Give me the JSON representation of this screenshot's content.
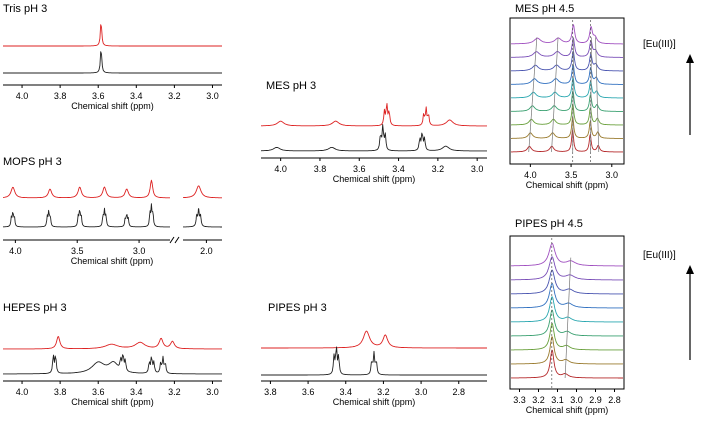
{
  "colors": {
    "ph3_red": "#dd2222",
    "ph3_black": "#222222",
    "titration": [
      "#b5282a",
      "#9a7b2e",
      "#6aa03c",
      "#3aa070",
      "#2aa7b0",
      "#3070c0",
      "#4a55b0",
      "#7a4fb8",
      "#a050c0"
    ]
  },
  "arrow_label": "[Eu(III)]",
  "chart_data": [
    {
      "id": "tris",
      "type": "line",
      "title": "Tris pH 3",
      "xlabel": "Chemical shift (ppm)",
      "xlim": [
        4.1,
        2.95
      ],
      "ticks": [
        4.0,
        3.8,
        3.6,
        3.4,
        3.2,
        3.0
      ],
      "tick_labels": [
        "4.0",
        "3.8",
        "3.6",
        "3.4",
        "3.2",
        "3.0"
      ],
      "series": [
        {
          "name": "pH 3 (red)",
          "peaks": [
            {
              "x": 3.585,
              "h": 1.0,
              "w": 0.004
            }
          ]
        },
        {
          "name": "pH 3 (black)",
          "peaks": [
            {
              "x": 3.585,
              "h": 1.0,
              "w": 0.004
            }
          ]
        }
      ]
    },
    {
      "id": "mops",
      "type": "line",
      "title": "MOPS pH 3",
      "xlabel": "Chemical shift (ppm)",
      "xlim": [
        4.1,
        2.75
      ],
      "xlim_right": [
        2.15,
        1.9
      ],
      "ticks": [
        4.0,
        3.5,
        3.0
      ],
      "tick_labels": [
        "4.0",
        "3.5",
        "3.0"
      ],
      "ticks_right": [
        2.0
      ],
      "tick_labels_right": [
        "2.0"
      ],
      "series": [
        {
          "name": "red",
          "peaks": [
            {
              "x": 4.02,
              "h": 0.55,
              "w": 0.018
            },
            {
              "x": 3.72,
              "h": 0.45,
              "w": 0.016
            },
            {
              "x": 3.48,
              "h": 0.55,
              "w": 0.016
            },
            {
              "x": 3.28,
              "h": 0.55,
              "w": 0.016
            },
            {
              "x": 3.1,
              "h": 0.45,
              "w": 0.016
            },
            {
              "x": 2.9,
              "h": 0.9,
              "w": 0.012
            },
            {
              "x": 2.05,
              "h": 0.55,
              "w": 0.018
            }
          ]
        },
        {
          "name": "black",
          "peaks": [
            {
              "x": 4.02,
              "h": 0.7,
              "w": 0.005,
              "mult": 3
            },
            {
              "x": 3.73,
              "h": 0.75,
              "w": 0.005,
              "mult": 3
            },
            {
              "x": 3.48,
              "h": 0.8,
              "w": 0.005,
              "mult": 3
            },
            {
              "x": 3.28,
              "h": 0.8,
              "w": 0.005,
              "mult": 3
            },
            {
              "x": 3.1,
              "h": 0.6,
              "w": 0.005,
              "mult": 3
            },
            {
              "x": 2.9,
              "h": 1.0,
              "w": 0.005,
              "mult": 3
            },
            {
              "x": 2.05,
              "h": 0.7,
              "w": 0.005,
              "mult": 3
            }
          ]
        }
      ]
    },
    {
      "id": "hepes",
      "type": "line",
      "title": "HEPES pH 3",
      "xlabel": "Chemical shift (ppm)",
      "xlim": [
        4.1,
        2.95
      ],
      "ticks": [
        4.0,
        3.8,
        3.6,
        3.4,
        3.2,
        3.0
      ],
      "tick_labels": [
        "4.0",
        "3.8",
        "3.6",
        "3.4",
        "3.2",
        "3.0"
      ],
      "series": [
        {
          "name": "red",
          "peaks": [
            {
              "x": 3.81,
              "h": 0.7,
              "w": 0.01
            },
            {
              "x": 3.53,
              "h": 0.25,
              "w": 0.04
            },
            {
              "x": 3.38,
              "h": 0.35,
              "w": 0.03
            },
            {
              "x": 3.27,
              "h": 0.55,
              "w": 0.012
            },
            {
              "x": 3.21,
              "h": 0.4,
              "w": 0.012
            }
          ]
        },
        {
          "name": "black",
          "peaks": [
            {
              "x": 3.83,
              "h": 1.0,
              "w": 0.004,
              "mult": 2
            },
            {
              "x": 3.6,
              "h": 0.6,
              "w": 0.04
            },
            {
              "x": 3.52,
              "h": 0.55,
              "w": 0.03
            },
            {
              "x": 3.47,
              "h": 0.9,
              "w": 0.004,
              "mult": 3
            },
            {
              "x": 3.32,
              "h": 0.9,
              "w": 0.004,
              "mult": 3
            },
            {
              "x": 3.26,
              "h": 0.85,
              "w": 0.004,
              "mult": 3
            }
          ]
        }
      ]
    },
    {
      "id": "mes3",
      "type": "line",
      "title": "MES pH 3",
      "xlabel": "Chemical shift (ppm)",
      "xlim": [
        4.1,
        2.95
      ],
      "ticks": [
        4.0,
        3.8,
        3.6,
        3.4,
        3.2,
        3.0
      ],
      "tick_labels": [
        "4.0",
        "3.8",
        "3.6",
        "3.4",
        "3.2",
        "3.0"
      ],
      "series": [
        {
          "name": "red",
          "peaks": [
            {
              "x": 4.0,
              "h": 0.2,
              "w": 0.02
            },
            {
              "x": 3.72,
              "h": 0.2,
              "w": 0.02
            },
            {
              "x": 3.46,
              "h": 0.9,
              "w": 0.004,
              "mult": 3
            },
            {
              "x": 3.26,
              "h": 0.7,
              "w": 0.004,
              "mult": 3
            },
            {
              "x": 3.14,
              "h": 0.25,
              "w": 0.02
            }
          ]
        },
        {
          "name": "black",
          "peaks": [
            {
              "x": 4.02,
              "h": 0.15,
              "w": 0.02
            },
            {
              "x": 3.74,
              "h": 0.15,
              "w": 0.02
            },
            {
              "x": 3.48,
              "h": 1.0,
              "w": 0.004,
              "mult": 3
            },
            {
              "x": 3.28,
              "h": 0.75,
              "w": 0.004,
              "mult": 3
            },
            {
              "x": 3.16,
              "h": 0.2,
              "w": 0.02
            }
          ]
        }
      ]
    },
    {
      "id": "pipes3",
      "type": "line",
      "title": "PIPES pH 3",
      "xlabel": "Chemical shift (ppm)",
      "xlim": [
        3.85,
        2.65
      ],
      "ticks": [
        3.8,
        3.6,
        3.4,
        3.2,
        3.0,
        2.8
      ],
      "tick_labels": [
        "3.8",
        "3.6",
        "3.4",
        "3.2",
        "3.0",
        "2.8"
      ],
      "series": [
        {
          "name": "red",
          "peaks": [
            {
              "x": 3.29,
              "h": 0.6,
              "w": 0.02
            },
            {
              "x": 3.19,
              "h": 0.45,
              "w": 0.015
            }
          ]
        },
        {
          "name": "black",
          "peaks": [
            {
              "x": 3.45,
              "h": 1.0,
              "w": 0.004,
              "mult": 3
            },
            {
              "x": 3.25,
              "h": 0.75,
              "w": 0.004,
              "mult": 3
            }
          ]
        }
      ]
    },
    {
      "id": "mes45",
      "type": "line",
      "title": "MES pH 4.5",
      "xlabel": "Chemical shift (ppm)",
      "xlim": [
        4.25,
        2.85
      ],
      "ticks": [
        4.0,
        3.5,
        3.0
      ],
      "tick_labels": [
        "4.0",
        "3.5",
        "3.0"
      ],
      "traces": 9,
      "peaks_start": [
        {
          "x": 4.02,
          "h": 0.18,
          "w": 0.03
        },
        {
          "x": 3.74,
          "h": 0.18,
          "w": 0.03
        },
        {
          "x": 3.48,
          "h": 0.7,
          "w": 0.015
        },
        {
          "x": 3.26,
          "h": 0.55,
          "w": 0.015
        },
        {
          "x": 3.16,
          "h": 0.2,
          "w": 0.02
        }
      ],
      "peaks_end": [
        {
          "x": 3.92,
          "h": 0.18,
          "w": 0.05
        },
        {
          "x": 3.66,
          "h": 0.18,
          "w": 0.05
        },
        {
          "x": 3.47,
          "h": 0.6,
          "w": 0.02
        },
        {
          "x": 3.25,
          "h": 0.5,
          "w": 0.02
        },
        {
          "x": 3.2,
          "h": 0.2,
          "w": 0.03
        }
      ],
      "guides_dotted": [
        3.48,
        3.26
      ]
    },
    {
      "id": "pipes45",
      "type": "line",
      "title": "PIPES pH 4.5",
      "xlabel": "Chemical shift (ppm)",
      "xlim": [
        3.35,
        2.75
      ],
      "ticks": [
        3.3,
        3.2,
        3.1,
        3.0,
        2.9,
        2.8
      ],
      "tick_labels": [
        "3.3",
        "3.2",
        "3.1",
        "3.0",
        "2.9",
        "2.8"
      ],
      "traces": 9,
      "peaks_start": [
        {
          "x": 3.13,
          "h": 0.75,
          "w": 0.012
        },
        {
          "x": 3.06,
          "h": 0.1,
          "w": 0.02
        }
      ],
      "peaks_end": [
        {
          "x": 3.13,
          "h": 0.6,
          "w": 0.02
        },
        {
          "x": 3.03,
          "h": 0.12,
          "w": 0.03
        }
      ],
      "guides_dotted": [
        3.13
      ]
    }
  ]
}
